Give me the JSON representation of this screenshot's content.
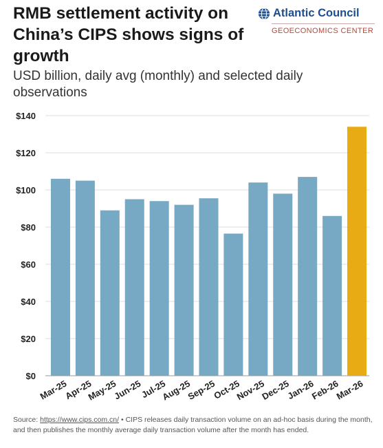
{
  "header": {
    "title": "RMB settlement activity on China’s CIPS shows signs of growth",
    "subtitle": "USD billion, daily avg (monthly) and selected daily observations"
  },
  "brand": {
    "name": "Atlantic Council",
    "center": "GEOECONOMICS CENTER",
    "globe_icon": "globe-icon",
    "color": "#1c4f8f",
    "center_color": "#b24a3c"
  },
  "chart_data": {
    "type": "bar",
    "categories": [
      "Mar-25",
      "Apr-25",
      "May-25",
      "Jun-25",
      "Jul-25",
      "Aug-25",
      "Sep-25",
      "Oct-25",
      "Nov-25",
      "Dec-25",
      "Jan-26",
      "Feb-26",
      "Mar-26"
    ],
    "values": [
      106,
      105,
      89,
      95,
      94,
      92,
      95.5,
      76.5,
      104,
      98,
      107,
      86,
      134
    ],
    "y_ticks": [
      0,
      20,
      40,
      60,
      80,
      100,
      120,
      140
    ],
    "y_tick_labels": [
      "$0",
      "$20",
      "$40",
      "$60",
      "$80",
      "$100",
      "$120",
      "$140"
    ],
    "ylim": [
      0,
      140
    ],
    "grid": true,
    "legend": "none",
    "bar_color": "#77a9c4",
    "highlight_color": "#e8ab14",
    "highlight_index": 12
  },
  "footer": {
    "source_label": "Source: ",
    "source_link": "https://www.cips.com.cn/",
    "source_note": " • CIPS releases daily transaction volume on an ad-hoc basis during the month, and then publishes the monthly average daily transaction volume after the month has ended."
  }
}
